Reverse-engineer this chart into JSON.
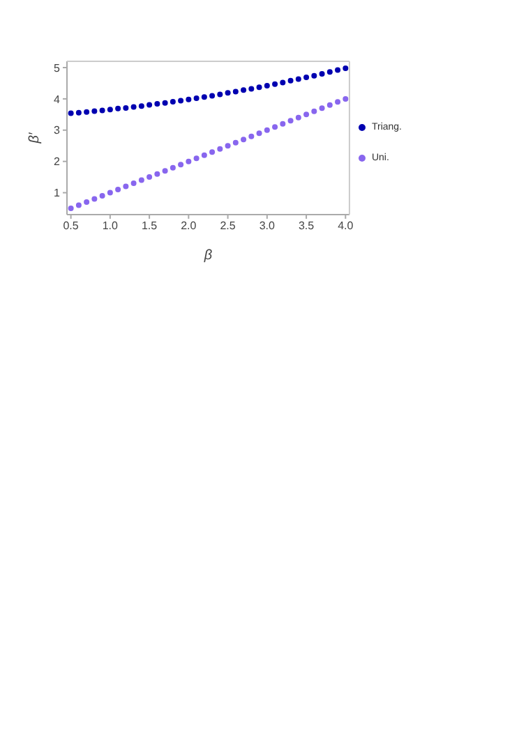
{
  "chart_data": {
    "type": "scatter",
    "xlabel": "β",
    "ylabel": "β′",
    "x": [
      0.5,
      0.6,
      0.7,
      0.8,
      0.9,
      1.0,
      1.1,
      1.2,
      1.3,
      1.4,
      1.5,
      1.6,
      1.7,
      1.8,
      1.9,
      2.0,
      2.1,
      2.2,
      2.3,
      2.4,
      2.5,
      2.6,
      2.7,
      2.8,
      2.9,
      3.0,
      3.1,
      3.2,
      3.3,
      3.4,
      3.5,
      3.6,
      3.7,
      3.8,
      3.9,
      4.0
    ],
    "series": [
      {
        "name": "Triang.",
        "color": "#0000b0",
        "values": [
          3.54,
          3.56,
          3.58,
          3.61,
          3.63,
          3.66,
          3.69,
          3.71,
          3.74,
          3.77,
          3.81,
          3.84,
          3.87,
          3.91,
          3.94,
          3.98,
          4.02,
          4.06,
          4.1,
          4.14,
          4.19,
          4.23,
          4.28,
          4.32,
          4.37,
          4.42,
          4.47,
          4.52,
          4.58,
          4.63,
          4.69,
          4.74,
          4.8,
          4.86,
          4.92,
          4.98
        ]
      },
      {
        "name": "Uni.",
        "color": "#8866ee",
        "values": [
          0.5,
          0.6,
          0.7,
          0.8,
          0.9,
          1.0,
          1.1,
          1.2,
          1.3,
          1.4,
          1.5,
          1.6,
          1.7,
          1.8,
          1.9,
          2.0,
          2.1,
          2.2,
          2.3,
          2.4,
          2.5,
          2.6,
          2.7,
          2.8,
          2.9,
          3.0,
          3.1,
          3.2,
          3.3,
          3.4,
          3.5,
          3.6,
          3.7,
          3.8,
          3.9,
          4.0
        ]
      }
    ],
    "xlim": [
      0.45,
      4.05
    ],
    "xticks": [
      0.5,
      {
        "value": 1,
        "label": "1.0"
      },
      1.5,
      {
        "value": 2,
        "label": "2.0"
      },
      2.5,
      {
        "value": 3,
        "label": "3.0"
      },
      3.5,
      {
        "value": 4,
        "label": "4.0"
      }
    ],
    "ylim": [
      0.3,
      5.2
    ],
    "yticks": [
      1,
      2,
      3,
      4,
      5
    ],
    "marker": "circle",
    "legend": "right"
  }
}
